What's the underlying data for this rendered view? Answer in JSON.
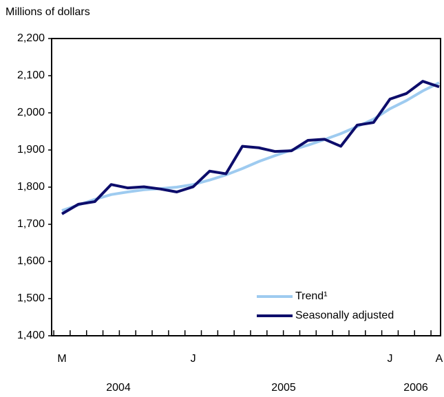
{
  "chart_data": {
    "type": "line",
    "y_axis_label": "Millions of dollars",
    "categories": [
      "M",
      null,
      null,
      null,
      null,
      null,
      null,
      null,
      "J",
      null,
      null,
      null,
      null,
      null,
      null,
      null,
      null,
      null,
      null,
      null,
      "J",
      null,
      null,
      "A"
    ],
    "year_labels": [
      "2004",
      "2005",
      "2006"
    ],
    "series": [
      {
        "name": "Trend¹",
        "color": "#9ecbf0",
        "values": [
          1737,
          1752,
          1767,
          1780,
          1787,
          1793,
          1796,
          1800,
          1807,
          1819,
          1833,
          1850,
          1869,
          1885,
          1900,
          1913,
          1928,
          1944,
          1963,
          1983,
          2011,
          2033,
          2059,
          2081
        ]
      },
      {
        "name": "Seasonally adjusted",
        "color": "#0d0d6b",
        "values": [
          1728,
          1754,
          1761,
          1807,
          1798,
          1801,
          1795,
          1787,
          1801,
          1843,
          1836,
          1910,
          1906,
          1896,
          1898,
          1926,
          1929,
          1910,
          1967,
          1974,
          2037,
          2052,
          2085,
          2070
        ]
      }
    ],
    "ylim": [
      1400,
      2200
    ],
    "yticks": [
      {
        "value": 1400,
        "label": "1,400"
      },
      {
        "value": 1500,
        "label": "1,500"
      },
      {
        "value": 1600,
        "label": "1,600"
      },
      {
        "value": 1700,
        "label": "1,700"
      },
      {
        "value": 1800,
        "label": "1,800"
      },
      {
        "value": 1900,
        "label": "1,900"
      },
      {
        "value": 2000,
        "label": "2,000"
      },
      {
        "value": 2100,
        "label": "2,100"
      },
      {
        "value": 2200,
        "label": "2,200"
      }
    ],
    "legend": "lower right"
  }
}
